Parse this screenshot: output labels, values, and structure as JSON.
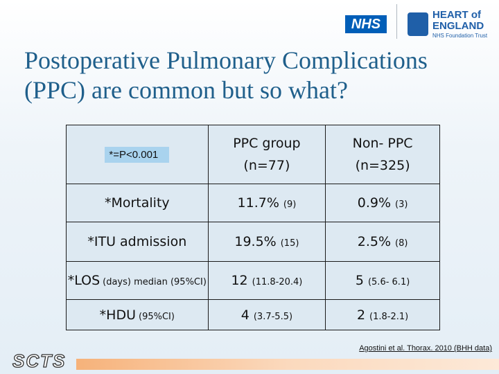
{
  "header": {
    "nhs_logo": "NHS",
    "trust_name": [
      "HEART of",
      "ENGLAND"
    ],
    "trust_subtitle": "NHS Foundation Trust"
  },
  "title_lines": [
    "Postoperative Pulmonary Complications",
    "(PPC) are common but so what?"
  ],
  "table": {
    "note": "*=P<0.001",
    "columns": [
      [
        "PPC group",
        "(n=77)"
      ],
      [
        "Non- PPC",
        "(n=325)"
      ]
    ],
    "rows": [
      {
        "label": [
          "*Mortality"
        ],
        "cells": [
          [
            "11.7%",
            "(9)"
          ],
          [
            "0.9%",
            "(3)"
          ]
        ]
      },
      {
        "label": [
          "*ITU admission"
        ],
        "cells": [
          [
            "19.5%",
            "(15)"
          ],
          [
            "2.5%",
            "(8)"
          ]
        ]
      },
      {
        "label": [
          "*LOS",
          "(days) median (95%CI)"
        ],
        "cells": [
          [
            "12",
            "(11.8-20.4)"
          ],
          [
            "5",
            "(5.6- 6.1)"
          ]
        ]
      },
      {
        "label": [
          "*HDU",
          "(95%CI)"
        ],
        "cells": [
          [
            "4",
            "(3.7-5.5)"
          ],
          [
            "2",
            "(1.8-2.1)"
          ]
        ]
      }
    ]
  },
  "citation": "Agostini et al. Thorax. 2010 (BHH data)",
  "footer_logo": "SCTS"
}
